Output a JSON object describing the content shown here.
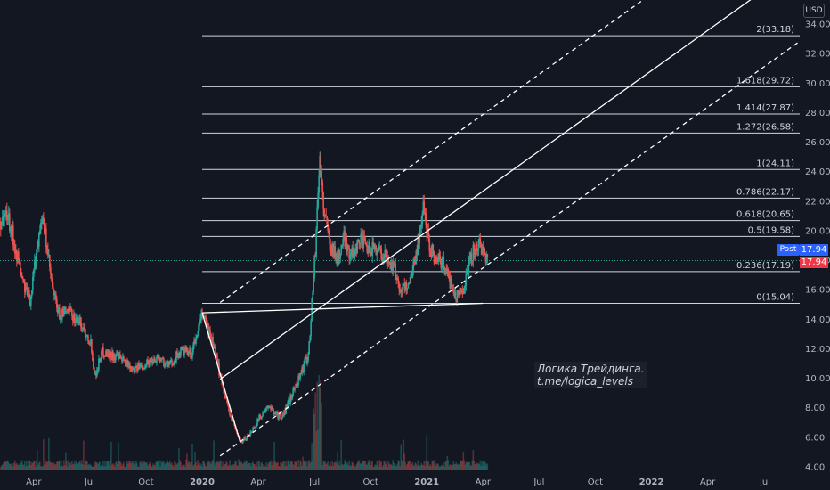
{
  "chart_data": {
    "type": "candlestick",
    "currency": "USD",
    "y_axis": {
      "ticks": [
        "4.00",
        "6.00",
        "8.00",
        "10.00",
        "12.00",
        "14.00",
        "16.00",
        "18.00",
        "20.00",
        "22.00",
        "24.00",
        "26.00",
        "28.00",
        "30.00",
        "32.00",
        "34.00"
      ],
      "ylim": [
        3.6,
        35.6
      ]
    },
    "x_axis": {
      "ticks": [
        {
          "label": "Apr",
          "t": 0.25
        },
        {
          "label": "Jul",
          "t": 0.5
        },
        {
          "label": "Oct",
          "t": 0.75
        },
        {
          "label": "2020",
          "t": 1.0
        },
        {
          "label": "Apr",
          "t": 1.25
        },
        {
          "label": "Jul",
          "t": 1.5
        },
        {
          "label": "Oct",
          "t": 1.75
        },
        {
          "label": "2021",
          "t": 2.0
        },
        {
          "label": "Apr",
          "t": 2.25
        },
        {
          "label": "Jul",
          "t": 2.5
        },
        {
          "label": "Oct",
          "t": 2.75
        },
        {
          "label": "2022",
          "t": 3.0
        },
        {
          "label": "Apr",
          "t": 3.25
        },
        {
          "label": "Ju",
          "t": 3.5
        }
      ],
      "xlim": [
        0.1,
        3.66
      ],
      "t_origin": "2019-01-01",
      "t_unit": "years"
    },
    "price_keypoints": [
      [
        0.1,
        20.6
      ],
      [
        0.13,
        21.2
      ],
      [
        0.17,
        18.5
      ],
      [
        0.2,
        16.4
      ],
      [
        0.23,
        15.2
      ],
      [
        0.25,
        17.5
      ],
      [
        0.28,
        20.9
      ],
      [
        0.3,
        19.5
      ],
      [
        0.33,
        16.0
      ],
      [
        0.36,
        14.2
      ],
      [
        0.4,
        14.5
      ],
      [
        0.45,
        13.8
      ],
      [
        0.5,
        12.5
      ],
      [
        0.52,
        10.1
      ],
      [
        0.55,
        11.8
      ],
      [
        0.6,
        11.5
      ],
      [
        0.65,
        11.1
      ],
      [
        0.7,
        10.6
      ],
      [
        0.75,
        11.0
      ],
      [
        0.8,
        11.4
      ],
      [
        0.85,
        10.8
      ],
      [
        0.9,
        11.8
      ],
      [
        0.95,
        11.6
      ],
      [
        1.0,
        14.4
      ],
      [
        1.04,
        12.5
      ],
      [
        1.08,
        10.0
      ],
      [
        1.12,
        7.5
      ],
      [
        1.17,
        5.6
      ],
      [
        1.21,
        6.2
      ],
      [
        1.26,
        7.5
      ],
      [
        1.3,
        8.0
      ],
      [
        1.35,
        7.2
      ],
      [
        1.38,
        8.3
      ],
      [
        1.43,
        10.1
      ],
      [
        1.47,
        11.6
      ],
      [
        1.5,
        18.5
      ],
      [
        1.52,
        25.0
      ],
      [
        1.54,
        21.0
      ],
      [
        1.57,
        19.0
      ],
      [
        1.6,
        18.0
      ],
      [
        1.63,
        19.5
      ],
      [
        1.66,
        18.2
      ],
      [
        1.7,
        19.5
      ],
      [
        1.73,
        18.6
      ],
      [
        1.77,
        18.9
      ],
      [
        1.81,
        18.2
      ],
      [
        1.85,
        17.5
      ],
      [
        1.88,
        15.9
      ],
      [
        1.92,
        16.5
      ],
      [
        1.95,
        18.5
      ],
      [
        1.98,
        21.5
      ],
      [
        2.01,
        19.0
      ],
      [
        2.04,
        18.0
      ],
      [
        2.07,
        17.8
      ],
      [
        2.1,
        16.5
      ],
      [
        2.13,
        15.5
      ],
      [
        2.16,
        16.2
      ],
      [
        2.2,
        18.5
      ],
      [
        2.24,
        19.0
      ],
      [
        2.27,
        17.9
      ]
    ],
    "last_price": 17.94,
    "price_labels": {
      "post_label": "Post",
      "post_value": "17.94",
      "last_value": "17.94"
    },
    "fib_levels": [
      {
        "ratio": "0",
        "price": 15.04,
        "label": "0(15.04)"
      },
      {
        "ratio": "0.236",
        "price": 17.19,
        "label": "0.236(17.19)"
      },
      {
        "ratio": "0.5",
        "price": 19.58,
        "label": "0.5(19.58)"
      },
      {
        "ratio": "0.618",
        "price": 20.65,
        "label": "0.618(20.65)"
      },
      {
        "ratio": "0.786",
        "price": 22.17,
        "label": "0.786(22.17)"
      },
      {
        "ratio": "1",
        "price": 24.11,
        "label": "1(24.11)"
      },
      {
        "ratio": "1.272",
        "price": 26.58,
        "label": "1.272(26.58)"
      },
      {
        "ratio": "1.414",
        "price": 27.87,
        "label": "1.414(27.87)"
      },
      {
        "ratio": "1.618",
        "price": 29.72,
        "label": "1.618(29.72)"
      },
      {
        "ratio": "2",
        "price": 33.18,
        "label": "2(33.18)"
      }
    ],
    "fib_start_t": 1.0,
    "channel": {
      "center": [
        [
          1.08,
          9.9
        ],
        [
          3.66,
          38.0
        ]
      ],
      "upper_offset": 5.2,
      "lower_offset": -5.2
    },
    "wedge_lines": [
      [
        [
          1.0,
          14.4
        ],
        [
          1.17,
          5.6
        ]
      ],
      [
        [
          1.0,
          14.4
        ],
        [
          2.25,
          15.04
        ]
      ]
    ],
    "watermark": [
      "Логика Трейдинга.",
      "t.me/logica_levels"
    ],
    "colors": {
      "background": "#131722",
      "up": "#26a69a",
      "down": "#ef5350",
      "fib_line": "#d1d4dc",
      "channel": "#ffffff",
      "last_price_line": "#26a69a"
    }
  }
}
